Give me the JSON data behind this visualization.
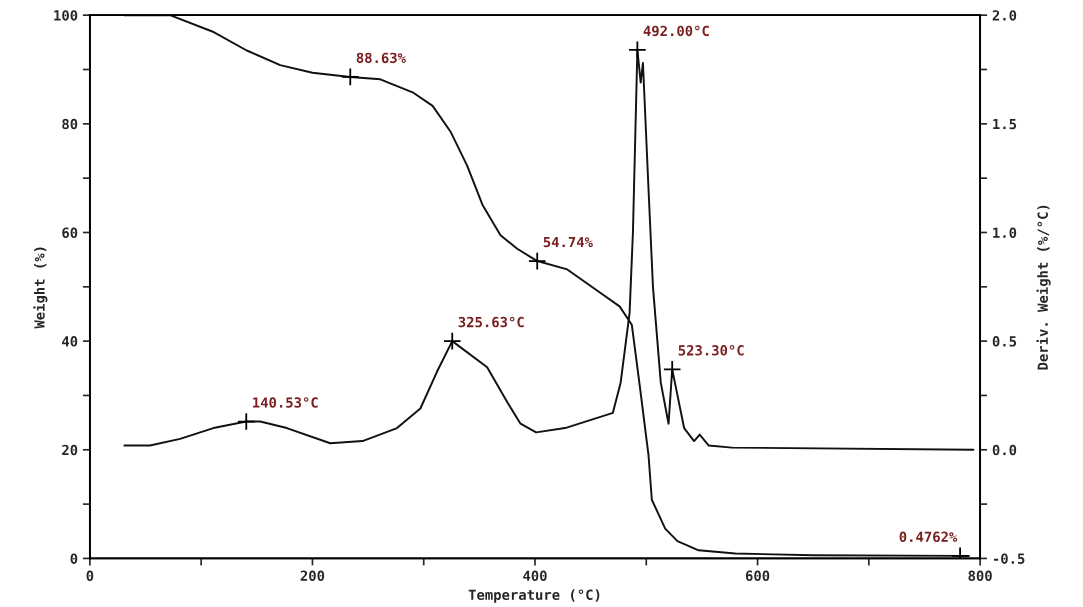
{
  "chart_data": {
    "type": "line",
    "xlabel": "Temperature (°C)",
    "ylabel": "Weight (%)",
    "y2label": "Deriv. Weight (%/°C)",
    "xlim": [
      0,
      800
    ],
    "xticks": [
      0,
      {
        "value": 100,
        "label": null
      },
      200,
      {
        "value": 300,
        "label": null
      },
      400,
      {
        "value": 500,
        "label": null
      },
      600,
      {
        "value": 700,
        "label": null
      },
      800
    ],
    "ylim": [
      0,
      100
    ],
    "yticks": [
      0,
      {
        "value": 10,
        "label": null
      },
      20,
      {
        "value": 30,
        "label": null
      },
      40,
      {
        "value": 50,
        "label": null
      },
      60,
      {
        "value": 70,
        "label": null
      },
      80,
      {
        "value": 90,
        "label": null
      },
      100
    ],
    "y2lim": [
      -0.5,
      2.0
    ],
    "y2ticks": [
      {
        "value": -0.5,
        "label": "-0.5"
      },
      {
        "value": -0.25,
        "label": null
      },
      {
        "value": 0.0,
        "label": "0.0"
      },
      {
        "value": 0.25,
        "label": null
      },
      {
        "value": 0.5,
        "label": "0.5"
      },
      {
        "value": 0.75,
        "label": null
      },
      {
        "value": 1.0,
        "label": "1.0"
      },
      {
        "value": 1.25,
        "label": null
      },
      {
        "value": 1.5,
        "label": "1.5"
      },
      {
        "value": 1.75,
        "label": null
      },
      {
        "value": 2.0,
        "label": "2.0"
      }
    ],
    "grid": false,
    "legend": false,
    "line_style": "solid",
    "marker": "none",
    "series": [
      {
        "color": "#111111",
        "x": [
          31,
          72,
          110,
          141,
          171,
          200,
          234,
          261,
          290,
          308,
          324,
          339,
          353,
          369,
          384,
          402,
          429,
          458,
          476,
          487,
          494,
          502,
          505,
          517,
          528,
          547,
          580,
          650,
          782,
          790
        ],
        "values": [
          100,
          100,
          97,
          93.5,
          90.8,
          89.4,
          88.63,
          88.2,
          85.8,
          83.3,
          78.6,
          72.3,
          65,
          59.5,
          57,
          54.74,
          53.2,
          49,
          46.4,
          43,
          32,
          19,
          10.8,
          5.5,
          3.2,
          1.5,
          0.9,
          0.6,
          0.4762,
          0.47
        ]
      },
      {
        "color": "#111111",
        "axis": "y2",
        "x": [
          31,
          54,
          81,
          111,
          140.53,
          153,
          177,
          216,
          245,
          276,
          297,
          312,
          325.63,
          357,
          375,
          387,
          401,
          427,
          470,
          477,
          485,
          488,
          492.0,
          495,
          497,
          502,
          506,
          513,
          520,
          523.3,
          534,
          543,
          548,
          556,
          577,
          794
        ],
        "values": [
          0.02,
          0.02,
          0.05,
          0.1,
          0.13,
          0.13,
          0.1,
          0.03,
          0.04,
          0.1,
          0.19,
          0.36,
          0.5,
          0.38,
          0.22,
          0.12,
          0.08,
          0.1,
          0.17,
          0.31,
          0.63,
          1.0,
          1.84,
          1.69,
          1.78,
          1.2,
          0.75,
          0.31,
          0.12,
          0.37,
          0.1,
          0.04,
          0.07,
          0.02,
          0.01,
          0.0
        ]
      }
    ],
    "annotations": [
      {
        "text": "88.63%",
        "x": 234,
        "y": 88.63
      },
      {
        "text": "54.74%",
        "x": 402,
        "y": 54.74
      },
      {
        "text": "0.4762%",
        "x": 782,
        "y": 0.4762
      },
      "140.53°C",
      "325.63°C",
      "492.00°C",
      "523.30°C"
    ]
  }
}
